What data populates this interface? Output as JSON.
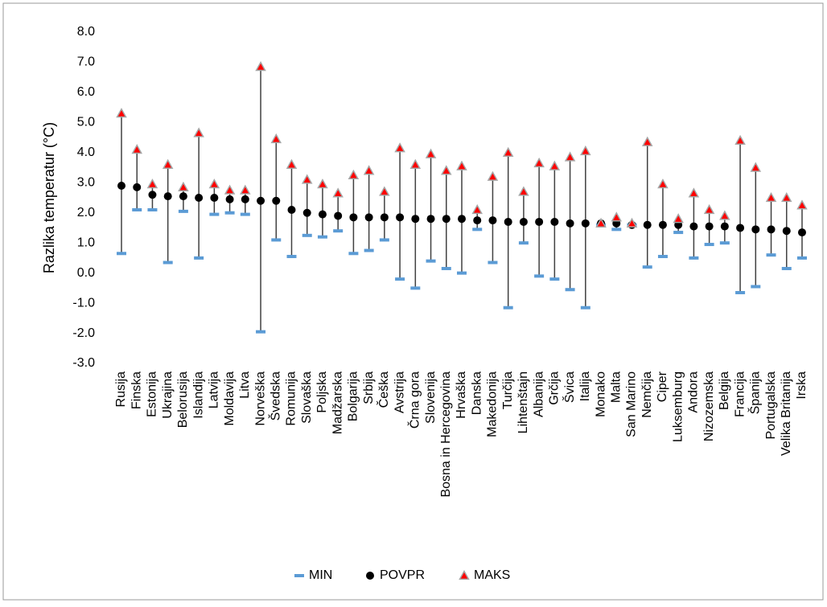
{
  "chart_data": {
    "type": "high-low",
    "y_label": "Razlika temperatur (°C)",
    "categories": [
      "Rusija",
      "Finska",
      "Estonija",
      "Ukrajina",
      "Belorusija",
      "Islandija",
      "Latvija",
      "Moldavija",
      "Litva",
      "Norveška",
      "Švedska",
      "Romunija",
      "Slovaška",
      "Poljska",
      "Madžarska",
      "Bolgarija",
      "Srbija",
      "Češka",
      "Avstrija",
      "Črna gora",
      "Slovenija",
      "Bosna in Hercegovina",
      "Hrvaška",
      "Danska",
      "Makedonija",
      "Turčija",
      "Lihtenštajn",
      "Albanija",
      "Grčija",
      "Švica",
      "Italija",
      "Monako",
      "Malta",
      "San Marino",
      "Nemčija",
      "Ciper",
      "Luksemburg",
      "Andora",
      "Nizozemska",
      "Belgija",
      "Francija",
      "Španija",
      "Portugalska",
      "Velika Britanija",
      "Irska"
    ],
    "series": [
      {
        "name": "MIN",
        "color": "#5b9bd5",
        "values": [
          0.65,
          2.1,
          2.1,
          0.35,
          2.05,
          0.5,
          1.95,
          2.0,
          1.95,
          -1.95,
          1.1,
          0.55,
          1.25,
          1.2,
          1.4,
          0.65,
          0.75,
          1.1,
          -0.2,
          -0.5,
          0.4,
          0.15,
          0.0,
          1.45,
          0.35,
          -1.15,
          1.0,
          -0.1,
          -0.2,
          -0.55,
          -1.15,
          1.6,
          1.45,
          1.6,
          0.2,
          0.55,
          1.35,
          0.5,
          0.95,
          1.0,
          -0.65,
          -0.45,
          0.6,
          0.15,
          0.5
        ]
      },
      {
        "name": "POVPR",
        "color": "#000000",
        "values": [
          2.9,
          2.85,
          2.6,
          2.55,
          2.55,
          2.5,
          2.5,
          2.45,
          2.45,
          2.4,
          2.4,
          2.1,
          2.0,
          1.95,
          1.9,
          1.85,
          1.85,
          1.85,
          1.85,
          1.8,
          1.8,
          1.8,
          1.8,
          1.75,
          1.75,
          1.7,
          1.7,
          1.7,
          1.7,
          1.65,
          1.65,
          1.65,
          1.65,
          1.6,
          1.6,
          1.6,
          1.6,
          1.55,
          1.55,
          1.55,
          1.5,
          1.45,
          1.45,
          1.4,
          1.35
        ]
      },
      {
        "name": "MAKS",
        "color": "#ff0000",
        "values": [
          5.3,
          4.1,
          2.95,
          3.6,
          2.85,
          4.65,
          2.95,
          2.75,
          2.75,
          6.85,
          4.45,
          3.6,
          3.1,
          2.95,
          2.65,
          3.25,
          3.4,
          2.7,
          4.15,
          3.6,
          3.95,
          3.4,
          3.55,
          2.1,
          3.2,
          4.0,
          2.7,
          3.65,
          3.55,
          3.85,
          4.05,
          1.65,
          1.85,
          1.65,
          4.35,
          2.95,
          1.8,
          2.65,
          2.1,
          1.9,
          4.4,
          3.5,
          2.5,
          2.5,
          2.25
        ]
      }
    ],
    "ylim": [
      -3,
      8
    ],
    "yticks": [
      {
        "value": -3,
        "label": "-3.0"
      },
      {
        "value": -2,
        "label": "-2.0"
      },
      {
        "value": -1,
        "label": "-1.0"
      },
      {
        "value": 0,
        "label": "0.0"
      },
      {
        "value": 1,
        "label": "1.0"
      },
      {
        "value": 2,
        "label": "2.0"
      },
      {
        "value": 3,
        "label": "3.0"
      },
      {
        "value": 4,
        "label": "4.0"
      },
      {
        "value": 5,
        "label": "5.0"
      },
      {
        "value": 6,
        "label": "6.0"
      },
      {
        "value": 7,
        "label": "7.0"
      },
      {
        "value": 8,
        "label": "8.0"
      }
    ],
    "legend": "bottom"
  }
}
